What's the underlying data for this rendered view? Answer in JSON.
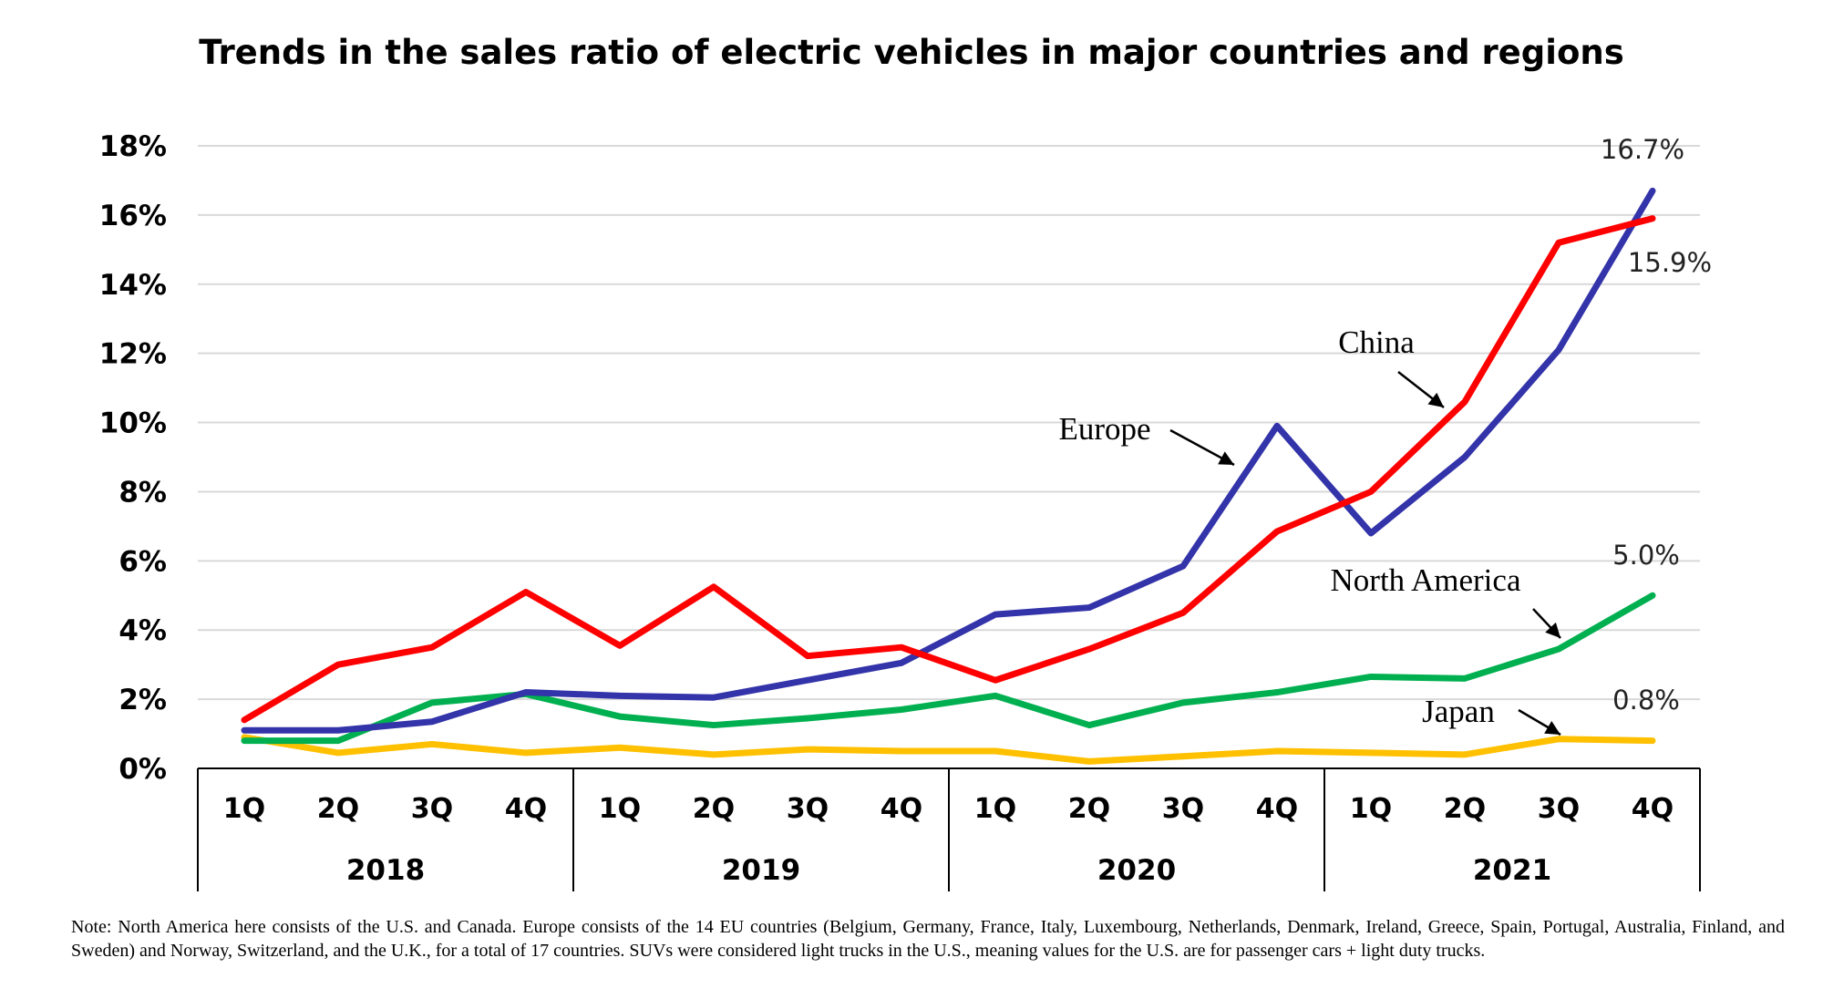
{
  "chart_data": {
    "type": "line",
    "title": "Trends in the sales ratio of electric vehicles in major countries and regions",
    "xlabel": "",
    "ylabel": "",
    "ylim": [
      0,
      18
    ],
    "yticks": [
      "0%",
      "2%",
      "4%",
      "6%",
      "8%",
      "10%",
      "12%",
      "14%",
      "16%",
      "18%"
    ],
    "grid": true,
    "quarters": [
      "1Q",
      "2Q",
      "3Q",
      "4Q"
    ],
    "years": [
      "2018",
      "2019",
      "2020",
      "2021"
    ],
    "categories": [
      "2018 1Q",
      "2018 2Q",
      "2018 3Q",
      "2018 4Q",
      "2019 1Q",
      "2019 2Q",
      "2019 3Q",
      "2019 4Q",
      "2020 1Q",
      "2020 2Q",
      "2020 3Q",
      "2020 4Q",
      "2021 1Q",
      "2021 2Q",
      "2021 3Q",
      "2021 4Q"
    ],
    "series": [
      {
        "name": "China",
        "color": "#ff0000",
        "values": [
          1.4,
          3.0,
          3.5,
          5.1,
          3.55,
          5.25,
          3.25,
          3.5,
          2.55,
          3.45,
          4.5,
          6.85,
          8.0,
          10.6,
          15.2,
          15.9
        ]
      },
      {
        "name": "Europe",
        "color": "#3333aa",
        "values": [
          1.1,
          1.1,
          1.35,
          2.2,
          2.1,
          2.05,
          2.55,
          3.05,
          4.45,
          4.65,
          5.85,
          9.9,
          6.8,
          9.0,
          12.1,
          16.7
        ]
      },
      {
        "name": "North America",
        "color": "#00b050",
        "values": [
          0.8,
          0.8,
          1.9,
          2.15,
          1.5,
          1.25,
          1.45,
          1.7,
          2.1,
          1.25,
          1.9,
          2.2,
          2.65,
          2.6,
          3.45,
          5.0
        ]
      },
      {
        "name": "Japan",
        "color": "#ffc000",
        "values": [
          0.9,
          0.45,
          0.7,
          0.45,
          0.6,
          0.4,
          0.55,
          0.5,
          0.5,
          0.2,
          0.35,
          0.5,
          0.45,
          0.4,
          0.85,
          0.8
        ]
      }
    ],
    "end_labels": [
      {
        "series": "Europe",
        "text": "16.7%"
      },
      {
        "series": "China",
        "text": "15.9%"
      },
      {
        "series": "North America",
        "text": "5.0%"
      },
      {
        "series": "Japan",
        "text": "0.8%"
      }
    ],
    "annotations": [
      "China",
      "Europe",
      "North America",
      "Japan"
    ]
  },
  "footnote": "Note: North America here consists of the U.S. and Canada. Europe consists of the 14 EU countries (Belgium, Germany, France, Italy, Luxembourg, Netherlands, Denmark, Ireland, Greece, Spain, Portugal, Australia, Finland, and Sweden) and Norway, Switzerland, and the U.K., for a total of 17 countries. SUVs were considered light trucks in the U.S., meaning values for the U.S. are for passenger cars + light duty trucks."
}
